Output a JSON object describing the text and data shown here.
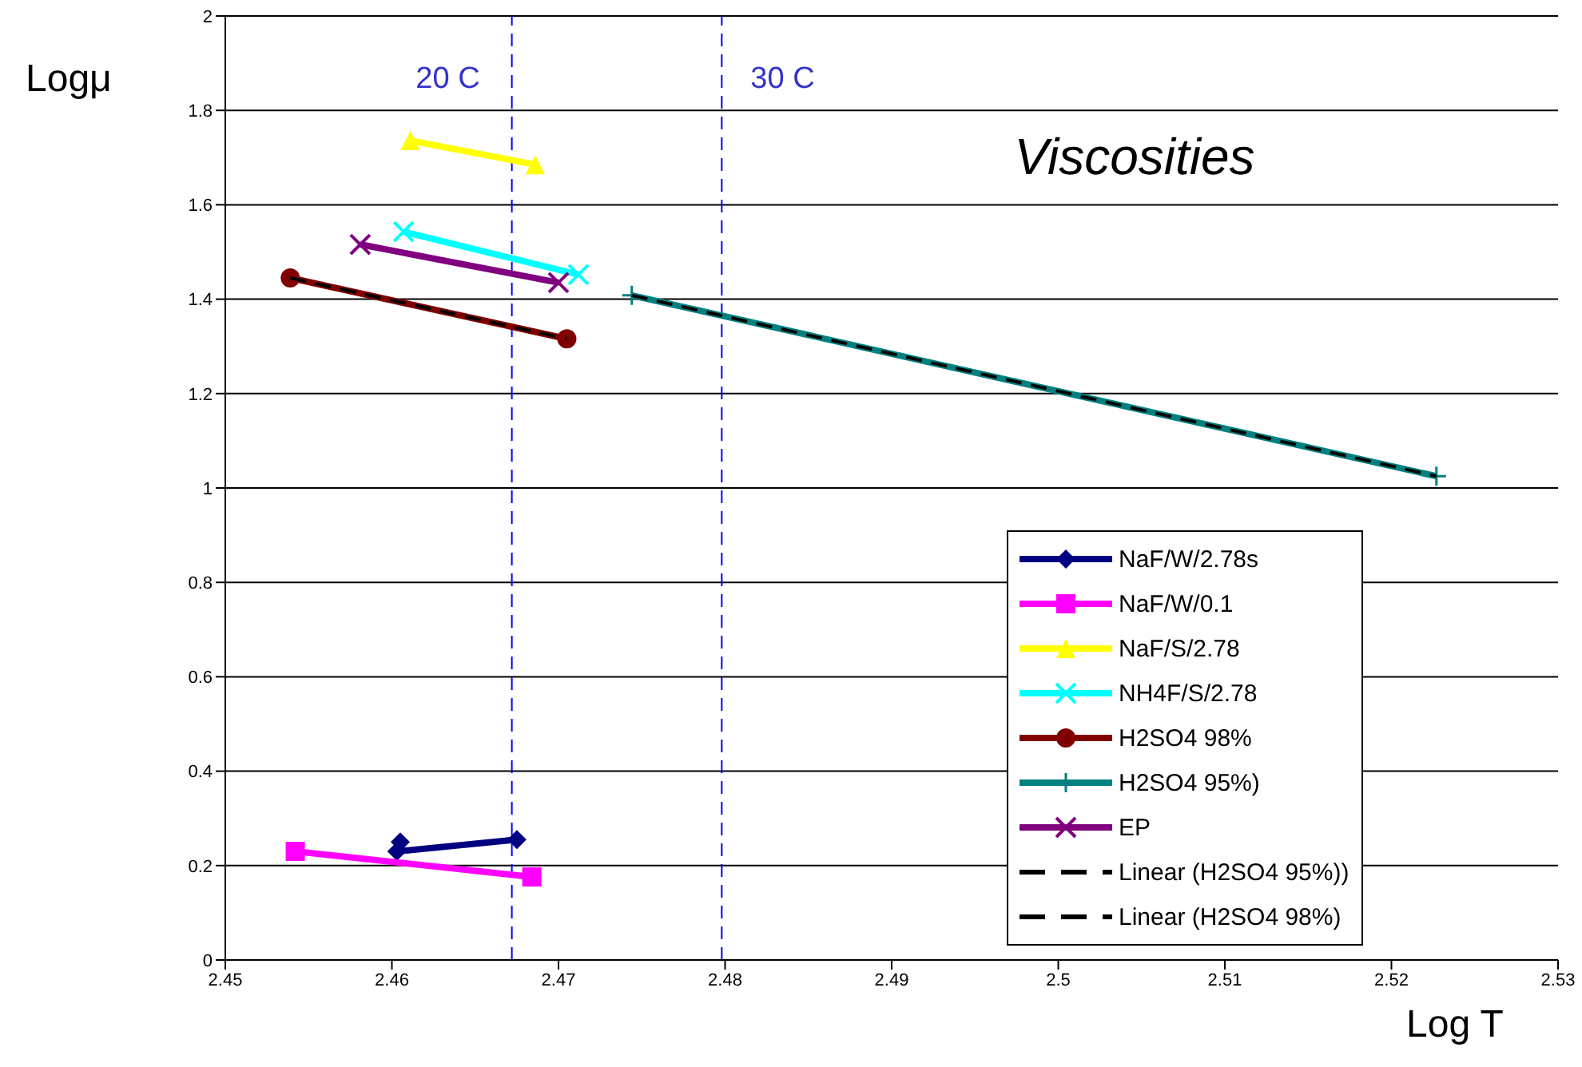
{
  "chart_data": {
    "type": "line",
    "title": "Viscosities",
    "xlabel": "Log T",
    "ylabel": "Logμ",
    "xlim": [
      2.45,
      2.53
    ],
    "xticks": [
      2.45,
      2.46,
      2.47,
      2.48,
      2.49,
      2.5,
      2.51,
      2.52,
      2.53
    ],
    "ylim": [
      0,
      2
    ],
    "yticks": [
      0,
      0.2,
      0.4,
      0.6,
      0.8,
      1,
      1.2,
      1.4,
      1.6,
      1.8,
      2
    ],
    "grid": "y",
    "legend": "bottom right",
    "ref_lines": [
      {
        "axis": "x",
        "value": 2.4672,
        "label": "20 C",
        "color": "#0000ff",
        "line_style": "dashed"
      },
      {
        "axis": "x",
        "value": 2.4798,
        "label": "30 C",
        "color": "#0000ff",
        "line_style": "dashed"
      }
    ],
    "series": [
      {
        "name": "NaF/W/2.78s",
        "color": "#000080",
        "marker": "diamond",
        "x": [
          2.4605,
          2.4603,
          2.4675
        ],
        "values": [
          0.25,
          0.23,
          0.255
        ]
      },
      {
        "name": "NaF/W/0.1",
        "color": "#ff00ff",
        "marker": "square",
        "x": [
          2.4542,
          2.4684
        ],
        "values": [
          0.23,
          0.176
        ]
      },
      {
        "name": "NaF/S/2.78",
        "color": "#ffff00",
        "marker": "triangle",
        "x": [
          2.4611,
          2.4686
        ],
        "values": [
          1.736,
          1.685
        ]
      },
      {
        "name": "NH4F/S/2.78",
        "color": "#00ffff",
        "marker": "cross",
        "x": [
          2.4607,
          2.4712
        ],
        "values": [
          1.543,
          1.452
        ]
      },
      {
        "name": "H2SO4 98%",
        "color": "#800000",
        "marker": "circle",
        "x": [
          2.4539,
          2.4705
        ],
        "values": [
          1.445,
          1.316
        ]
      },
      {
        "name": "H2SO4 95%)",
        "color": "#008080",
        "marker": "plus",
        "x": [
          2.4744,
          2.5227
        ],
        "values": [
          1.408,
          1.025
        ]
      },
      {
        "name": "EP",
        "color": "#800080",
        "marker": "cross",
        "x": [
          2.4581,
          2.47
        ],
        "values": [
          1.516,
          1.435
        ]
      },
      {
        "name": "Linear (H2SO4 95%))",
        "color": "#000000",
        "marker": "none",
        "line_style": "dashed",
        "x": [
          2.4744,
          2.5227
        ],
        "values": [
          1.408,
          1.025
        ]
      },
      {
        "name": "Linear (H2SO4 98%)",
        "color": "#000000",
        "marker": "none",
        "line_style": "dashed",
        "x": [
          2.4539,
          2.4705
        ],
        "values": [
          1.445,
          1.316
        ]
      }
    ]
  }
}
